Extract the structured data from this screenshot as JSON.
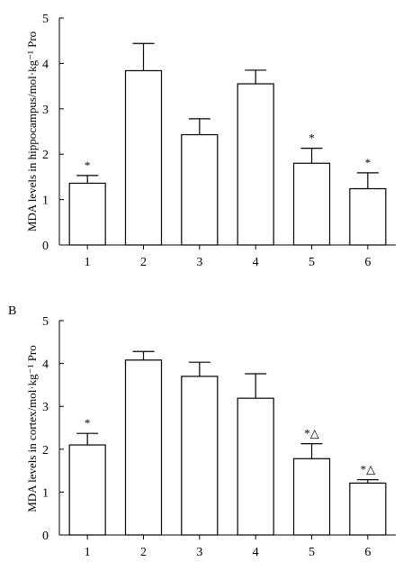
{
  "colors": {
    "ink": "#000000",
    "bar_fill": "#ffffff"
  },
  "chart_data": [
    {
      "type": "bar",
      "panel_label": "",
      "title": "",
      "ylabel": "MDA levels in hippocampus/mol·kg⁻¹ Pro",
      "xlabel": "",
      "categories": [
        "1",
        "2",
        "3",
        "4",
        "5",
        "6"
      ],
      "values": [
        1.36,
        3.84,
        2.43,
        3.55,
        1.8,
        1.24
      ],
      "errors": [
        0.17,
        0.6,
        0.35,
        0.3,
        0.33,
        0.35
      ],
      "annotations": [
        "*",
        "",
        "",
        "",
        "*",
        "*"
      ],
      "ylim": [
        0,
        5
      ],
      "yticks": [
        "0",
        "1",
        "2",
        "3",
        "4",
        "5"
      ],
      "grid": false,
      "legend": "none"
    },
    {
      "type": "bar",
      "panel_label": "B",
      "title": "",
      "ylabel": "MDA levels in cortex/mol·kg⁻¹ Pro",
      "xlabel": "",
      "categories": [
        "1",
        "2",
        "3",
        "4",
        "5",
        "6"
      ],
      "values": [
        2.1,
        4.08,
        3.7,
        3.19,
        1.78,
        1.21
      ],
      "errors": [
        0.27,
        0.2,
        0.33,
        0.57,
        0.35,
        0.08
      ],
      "annotations": [
        "*",
        "",
        "",
        "",
        "*△",
        "*△"
      ],
      "ylim": [
        0,
        5
      ],
      "yticks": [
        "0",
        "1",
        "2",
        "3",
        "4",
        "5"
      ],
      "grid": false,
      "legend": "none"
    }
  ]
}
